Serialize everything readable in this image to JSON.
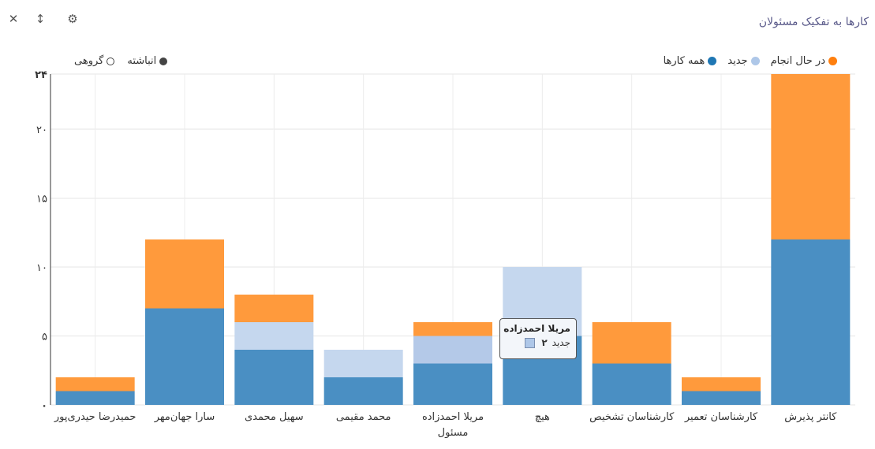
{
  "window": {
    "title": "کارها به تفکیک مسئولان",
    "icons": [
      "close-icon",
      "sort-icon",
      "gear-icon"
    ]
  },
  "legend": {
    "items": [
      {
        "label": "در حال انجام",
        "color": "#ff9a3c"
      },
      {
        "label": "جدید",
        "color": "#aec7e8"
      },
      {
        "label": "همه کارها",
        "color": "#1f77b4"
      }
    ]
  },
  "mode": {
    "stacked_label": "انباشته",
    "grouped_label": "گروهی",
    "selected": "stacked"
  },
  "tooltip": {
    "title": "مریلا احمدزاده",
    "series": "جدید",
    "value": "۲"
  },
  "chart_data": {
    "type": "bar",
    "stacked": true,
    "categories": [
      "کانتر پذیرش",
      "کارشناسان تعمیر",
      "کارشناسان تشخیص",
      "هیچ",
      "مریلا احمدزاده\nمسئول",
      "محمد مقیمی",
      "سهیل محمدی",
      "سارا جهان‌مهر",
      "حمیدرضا حیدری‌پور"
    ],
    "series": [
      {
        "name": "همه کارها",
        "color": "#1f77b4",
        "values": [
          12,
          1,
          3,
          5,
          3,
          2,
          4,
          7,
          1
        ]
      },
      {
        "name": "جدید",
        "color": "#aec7e8",
        "values": [
          0,
          0,
          0,
          5,
          2,
          2,
          2,
          0,
          0
        ]
      },
      {
        "name": "در حال انجام",
        "color": "#ff9a3c",
        "values": [
          12,
          1,
          3,
          0,
          1,
          0,
          2,
          5,
          1
        ]
      }
    ],
    "ylim": [
      0,
      24
    ],
    "yticks": [
      "۰",
      "۵",
      "۱۰",
      "۱۵",
      "۲۰",
      "۲۴"
    ],
    "grid": true,
    "legend_position": "top-right"
  }
}
